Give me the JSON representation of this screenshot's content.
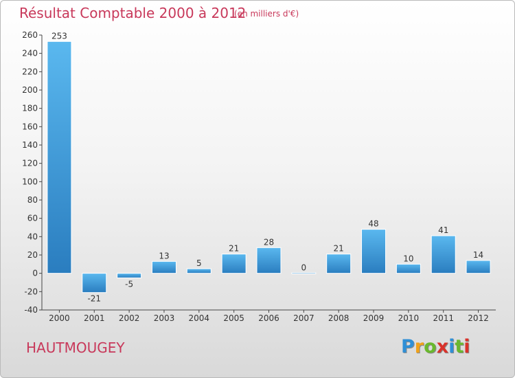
{
  "title": "Résultat Comptable 2000 à 2012",
  "subtitle": "(en milliers d'€)",
  "commune": "HAUTMOUGEY",
  "logo": {
    "letters": [
      "P",
      "r",
      "o",
      "x",
      "i",
      "t",
      "i"
    ],
    "colors": [
      "#2f8fd6",
      "#f0a21b",
      "#6ab82e",
      "#d9322a",
      "#2f8fd6",
      "#6ab82e",
      "#d9322a"
    ]
  },
  "colors": {
    "title": "#c8385a",
    "bar_top": "#5ab8ef",
    "bar_bottom": "#2a7dbf"
  },
  "chart_data": {
    "type": "bar",
    "title": "Résultat Comptable 2000 à 2012",
    "xlabel": "",
    "ylabel": "",
    "categories": [
      "2000",
      "2001",
      "2002",
      "2003",
      "2004",
      "2005",
      "2006",
      "2007",
      "2008",
      "2009",
      "2010",
      "2011",
      "2012"
    ],
    "values": [
      253,
      -21,
      -5,
      13,
      5,
      21,
      28,
      0,
      21,
      48,
      10,
      41,
      14
    ],
    "ylim": [
      -40,
      260
    ],
    "yticks": [
      -40,
      -20,
      0,
      20,
      40,
      60,
      80,
      100,
      120,
      140,
      160,
      180,
      200,
      220,
      240,
      260
    ],
    "grid": false,
    "legend": "none"
  }
}
